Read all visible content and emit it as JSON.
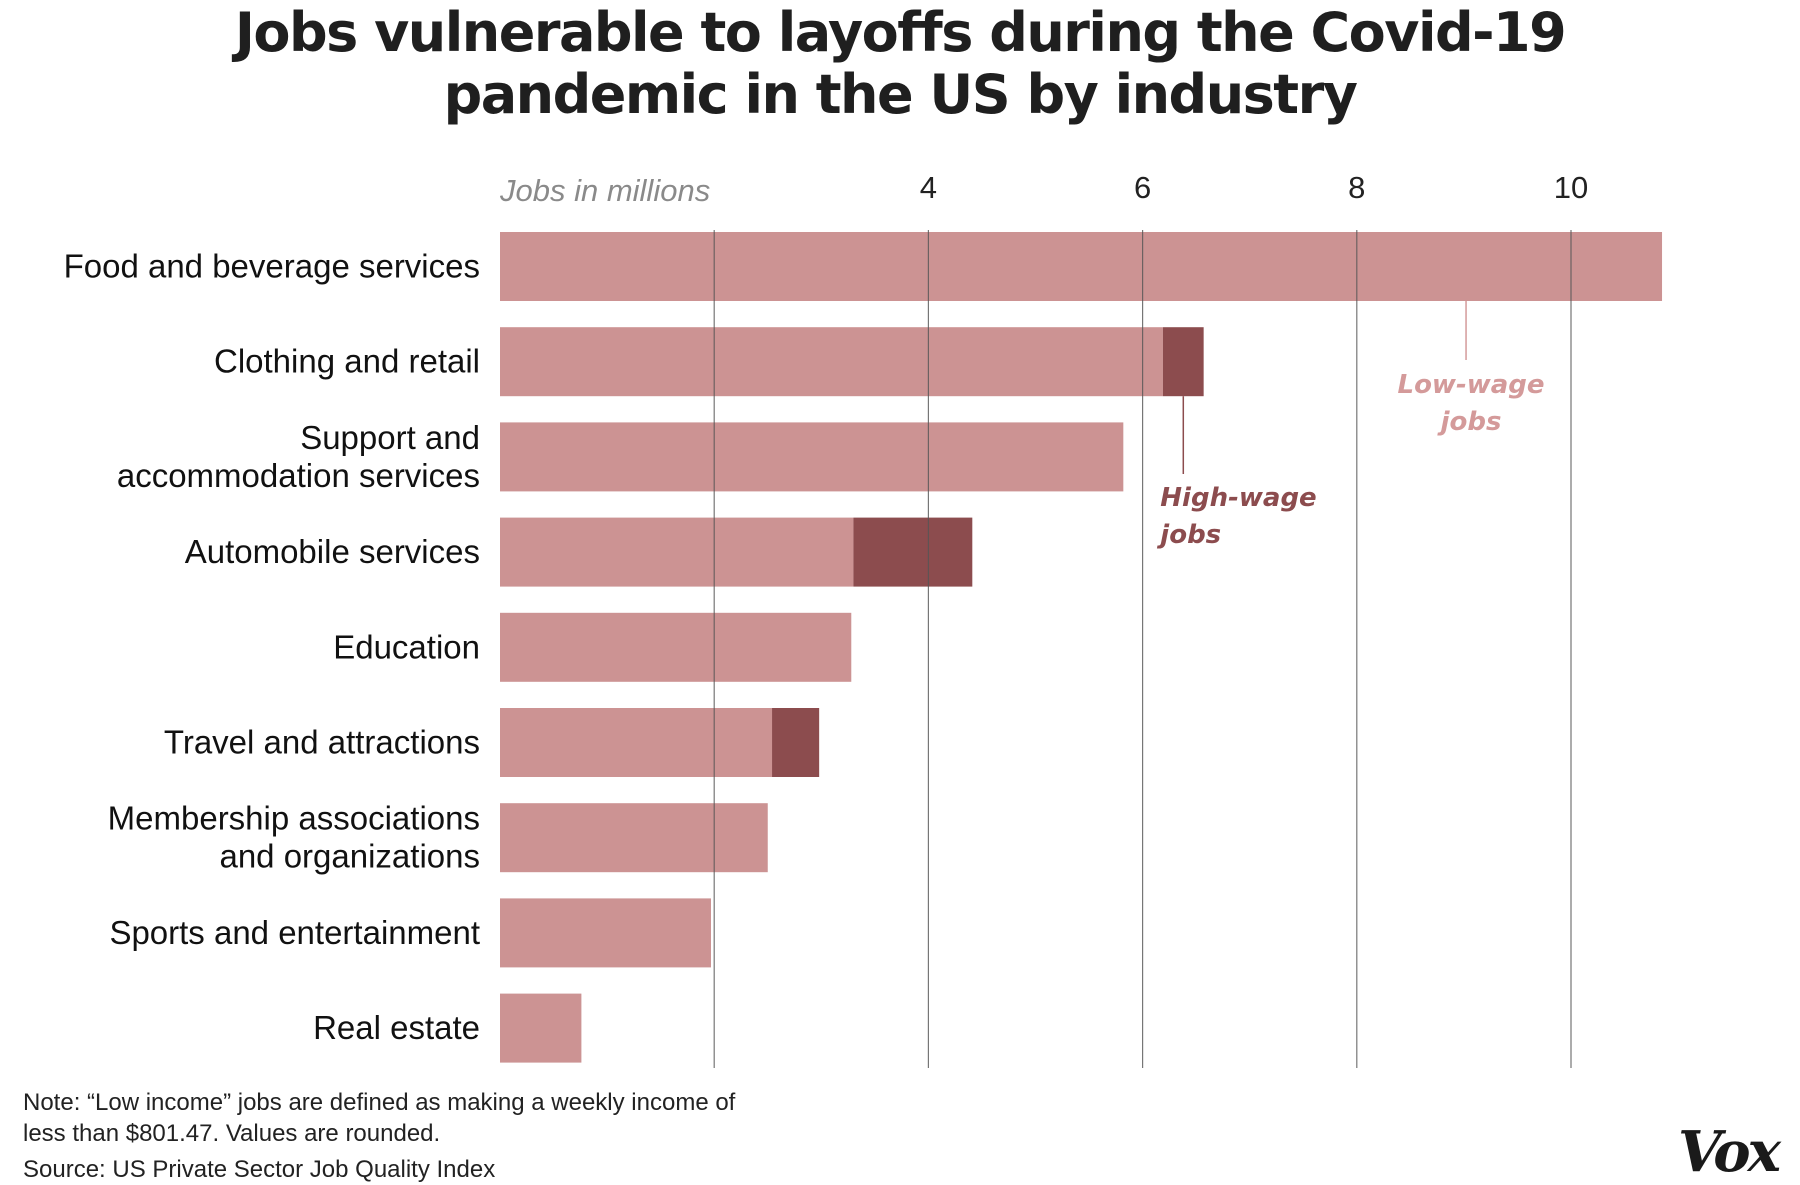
{
  "title_lines": [
    "Jobs vulnerable to layoffs during the Covid-19",
    "pandemic in the US by industry"
  ],
  "chart_data": {
    "type": "bar",
    "orientation": "horizontal",
    "stacked": true,
    "title": "Jobs vulnerable to layoffs during the Covid-19 pandemic in the US by industry",
    "axis_label": "Jobs in millions",
    "xlim": [
      0,
      11
    ],
    "x_ticks": [
      4,
      6,
      8,
      10
    ],
    "gridlines_at": [
      2,
      4,
      6,
      8,
      10
    ],
    "categories": [
      [
        "Food and beverage services"
      ],
      [
        "Clothing and retail"
      ],
      [
        "Support and",
        "accommodation services"
      ],
      [
        "Automobile services"
      ],
      [
        "Education"
      ],
      [
        "Travel and attractions"
      ],
      [
        "Membership associations",
        "and organizations"
      ],
      [
        "Sports and entertainment"
      ],
      [
        "Real estate"
      ]
    ],
    "series": [
      {
        "name": "Low-wage jobs",
        "color": "#cc9393",
        "values": [
          10.85,
          6.19,
          5.82,
          3.3,
          3.28,
          2.54,
          2.5,
          1.97,
          0.76
        ]
      },
      {
        "name": "High-wage jobs",
        "color": "#8c4c4e",
        "values": [
          0,
          0.38,
          0,
          1.11,
          0,
          0.44,
          0,
          0,
          0
        ]
      }
    ],
    "annotations": [
      {
        "lines": [
          "Low-wage",
          "jobs"
        ],
        "series": "Low-wage jobs",
        "color": "#d49a9a"
      },
      {
        "lines": [
          "High-wage",
          "jobs"
        ],
        "series": "High-wage jobs",
        "color": "#8c4c4e"
      }
    ]
  },
  "footer": {
    "note": "Note: “Low income” jobs are defined as making a weekly income of less than $801.47. Values are rounded.",
    "source": "Source: US Private Sector Job Quality Index"
  },
  "logo_text": "Vox"
}
